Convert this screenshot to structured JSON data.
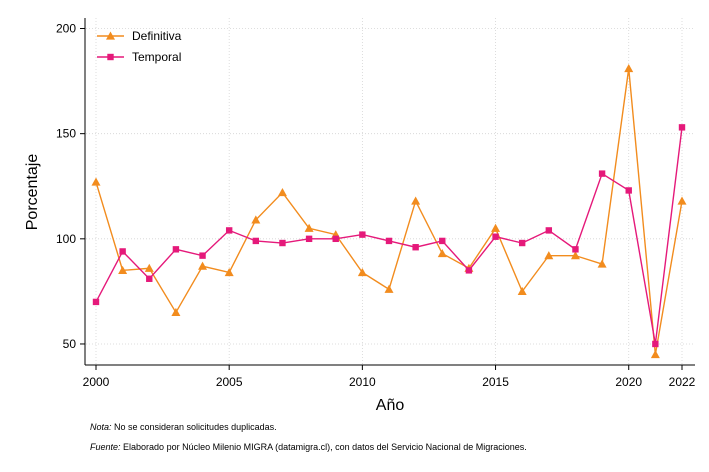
{
  "chart_data": {
    "type": "line",
    "xlabel": "Año",
    "ylabel": "Porcentaje",
    "x": [
      2000,
      2001,
      2002,
      2003,
      2004,
      2005,
      2006,
      2007,
      2008,
      2009,
      2010,
      2011,
      2012,
      2013,
      2014,
      2015,
      2016,
      2017,
      2018,
      2019,
      2020,
      2021,
      2022
    ],
    "xticks": [
      2000,
      2005,
      2010,
      2015,
      2020,
      2022
    ],
    "yticks": [
      50,
      100,
      150,
      200
    ],
    "xlim": [
      2000,
      2022
    ],
    "ylim": [
      40,
      205
    ],
    "grid": true,
    "legend_position": "top-left",
    "series": [
      {
        "name": "Definitiva",
        "color": "#f28c1e",
        "marker": "triangle",
        "values": [
          127,
          85,
          86,
          65,
          87,
          84,
          109,
          122,
          105,
          102,
          84,
          76,
          118,
          93,
          86,
          105,
          75,
          92,
          92,
          88,
          181,
          45,
          118
        ]
      },
      {
        "name": "Temporal",
        "color": "#e5197a",
        "marker": "square",
        "values": [
          70,
          94,
          81,
          95,
          92,
          104,
          99,
          98,
          100,
          100,
          102,
          99,
          96,
          99,
          85,
          101,
          98,
          104,
          95,
          131,
          123,
          50,
          153
        ]
      }
    ]
  },
  "notes": {
    "note_label": "Nota:",
    "note_text": " No se consideran solicitudes duplicadas.",
    "source_label": "Fuente:",
    "source_text": " Elaborado por Núcleo Milenio MIGRA (datamigra.cl), con datos del Servicio Nacional de Migraciones."
  }
}
